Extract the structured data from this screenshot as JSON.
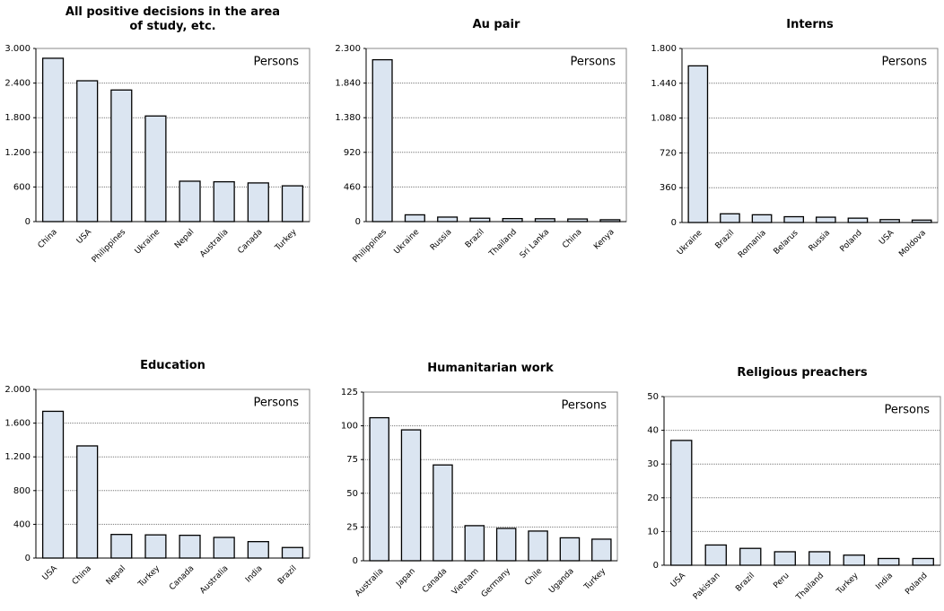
{
  "chart_data": [
    {
      "type": "bar",
      "title": "All positive decisions in the area of study, etc.",
      "annotation": "Persons",
      "categories": [
        "China",
        "USA",
        "Philippines",
        "Ukraine",
        "Nepal",
        "Australia",
        "Canada",
        "Turkey"
      ],
      "values": [
        2830,
        2440,
        2280,
        1830,
        700,
        690,
        670,
        620
      ],
      "color": "#dbe5f1",
      "ylim": [
        0,
        3000
      ],
      "yticks": [
        0,
        600,
        {
          "value": 1200,
          "label": "1.200"
        },
        {
          "value": 1800,
          "label": "1.800"
        },
        {
          "value": 2400,
          "label": "2.400"
        },
        {
          "value": 3000,
          "label": "3.000"
        }
      ],
      "grid": true
    },
    {
      "type": "bar",
      "title": "Au pair",
      "annotation": "Persons",
      "categories": [
        "Philippines",
        "Ukraine",
        "Russia",
        "Brazil",
        "Thailand",
        "Sri Lanka",
        "China",
        "Kenya"
      ],
      "values": [
        2150,
        90,
        60,
        45,
        40,
        38,
        35,
        25
      ],
      "color": "#dbe5f1",
      "ylim": [
        0,
        2300
      ],
      "yticks": [
        0,
        460,
        920,
        {
          "value": 1380,
          "label": "1.380"
        },
        {
          "value": 1840,
          "label": "1.840"
        },
        {
          "value": 2300,
          "label": "2.300"
        }
      ],
      "grid": true
    },
    {
      "type": "bar",
      "title": "Interns",
      "annotation": "Persons",
      "categories": [
        "Ukraine",
        "Brazil",
        "Romania",
        "Belarus",
        "Russia",
        "Poland",
        "USA",
        "Moldova"
      ],
      "values": [
        1620,
        90,
        80,
        60,
        55,
        45,
        30,
        25
      ],
      "color": "#dbe5f1",
      "ylim": [
        0,
        1800
      ],
      "yticks": [
        0,
        360,
        720,
        {
          "value": 1080,
          "label": "1.080"
        },
        {
          "value": 1440,
          "label": "1.440"
        },
        {
          "value": 1800,
          "label": "1.800"
        }
      ],
      "grid": true
    },
    {
      "type": "bar",
      "title": "Education",
      "annotation": "Persons",
      "categories": [
        "USA",
        "China",
        "Nepal",
        "Turkey",
        "Canada",
        "Australia",
        "India",
        "Brazil"
      ],
      "values": [
        1740,
        1330,
        280,
        275,
        270,
        245,
        195,
        125
      ],
      "color": "#dbe5f1",
      "ylim": [
        0,
        2000
      ],
      "yticks": [
        0,
        400,
        800,
        {
          "value": 1200,
          "label": "1.200"
        },
        {
          "value": 1600,
          "label": "1.600"
        },
        {
          "value": 2000,
          "label": "2.000"
        }
      ],
      "grid": true
    },
    {
      "type": "bar",
      "title": "Humanitarian work",
      "annotation": "Persons",
      "categories": [
        "Australia",
        "Japan",
        "Canada",
        "Vietnam",
        "Germany",
        "Chile",
        "Uganda",
        "Turkey"
      ],
      "values": [
        106,
        97,
        71,
        26,
        24,
        22,
        17,
        16
      ],
      "color": "#dbe5f1",
      "ylim": [
        0,
        125
      ],
      "yticks": [
        0,
        25,
        50,
        75,
        100,
        125
      ],
      "grid": true
    },
    {
      "type": "bar",
      "title": "Religious preachers",
      "annotation": "Persons",
      "categories": [
        "USA",
        "Pakistan",
        "Brazil",
        "Peru",
        "Thailand",
        "Turkey",
        "India",
        "Poland"
      ],
      "values": [
        37,
        6,
        5,
        4,
        4,
        3,
        2,
        2
      ],
      "color": "#dbe5f1",
      "ylim": [
        0,
        50
      ],
      "yticks": [
        0,
        10,
        20,
        30,
        40,
        50
      ],
      "grid": true
    }
  ]
}
